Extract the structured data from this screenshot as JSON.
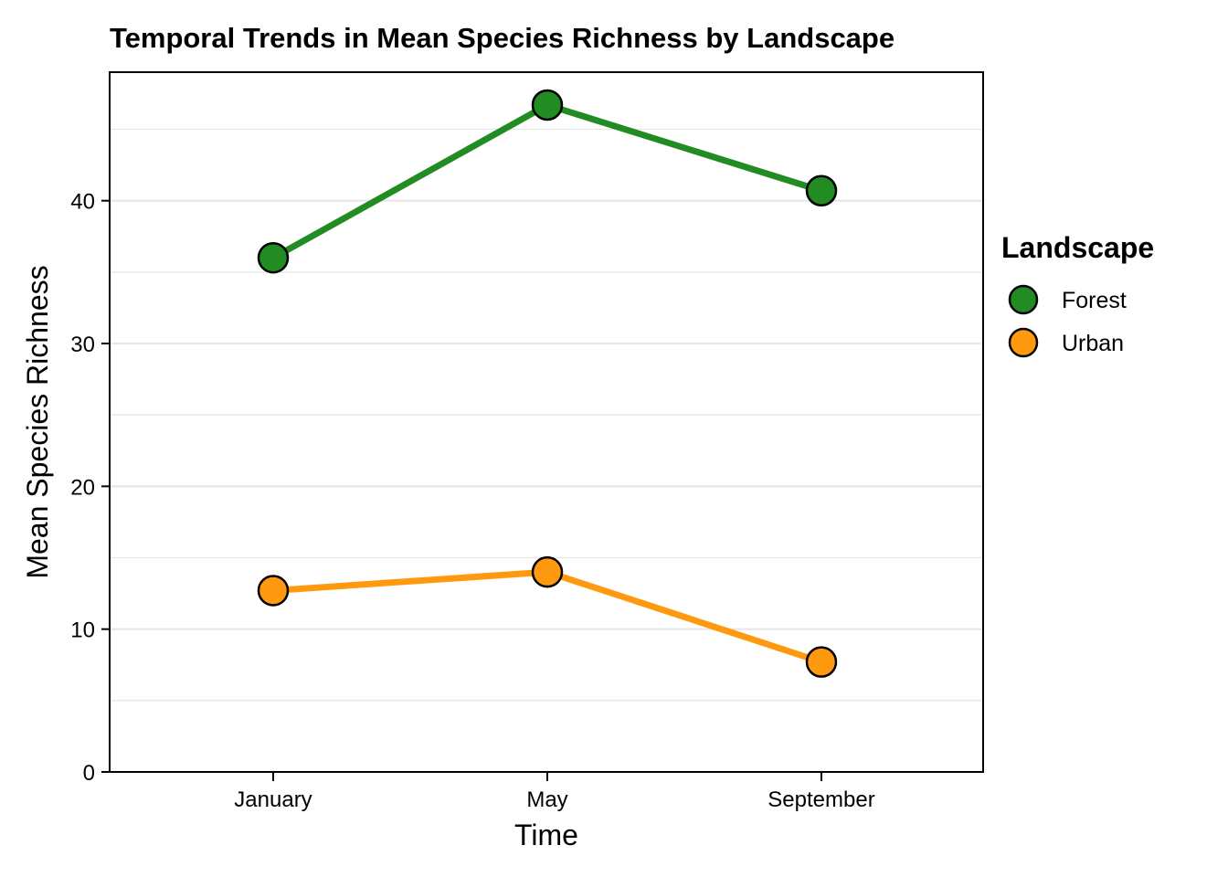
{
  "chart_data": {
    "type": "line",
    "title": "Temporal Trends in Mean Species Richness by Landscape",
    "xlabel": "Time",
    "ylabel": "Mean Species Richness",
    "categories": [
      "January",
      "May",
      "September"
    ],
    "ylim": [
      0,
      49
    ],
    "yticks": [
      0,
      10,
      20,
      30,
      40
    ],
    "grid": "horizontal",
    "legend": {
      "title": "Landscape",
      "placement": "right"
    },
    "series": [
      {
        "name": "Forest",
        "color": "#228B22",
        "values": [
          36.0,
          46.7,
          40.7
        ]
      },
      {
        "name": "Urban",
        "color": "#FF9A10",
        "values": [
          12.7,
          14.0,
          7.7
        ]
      }
    ]
  }
}
